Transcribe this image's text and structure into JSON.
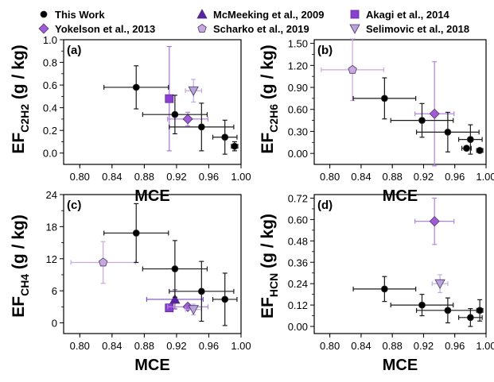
{
  "legend": {
    "entries": [
      {
        "label": "This Work",
        "marker": "circle",
        "color": "#000000"
      },
      {
        "label": "McMeeking et al., 2009",
        "marker": "triangle-up",
        "color": "#5b1fa8"
      },
      {
        "label": "Akagi et al., 2014",
        "marker": "square",
        "color": "#8a3fd1"
      },
      {
        "label": "Yokelson et al., 2013",
        "marker": "diamond",
        "color": "#a25ad6"
      },
      {
        "label": "Scharko et al., 2019",
        "marker": "pentagon",
        "color": "#c8a8df"
      },
      {
        "label": "Selimovic et al., 2018",
        "marker": "triangle-down",
        "color": "#b9a3d8"
      }
    ]
  },
  "chart_data": [
    {
      "panel_label": "(a)",
      "type": "scatter",
      "xlabel": "MCE",
      "ylabel_main": "EF",
      "ylabel_sub": "C2H2",
      "ylabel_units": " (g / kg)",
      "xlim": [
        0.78,
        1.0
      ],
      "ylim": [
        -0.1,
        1.0
      ],
      "xticks": [
        "0.80",
        "0.84",
        "0.88",
        "0.92",
        "0.96",
        "1.00"
      ],
      "yticks": [
        "0.0",
        "0.2",
        "0.4",
        "0.6",
        "0.8",
        "1.0"
      ],
      "ytick_values": [
        0.0,
        0.2,
        0.4,
        0.6,
        0.8,
        1.0
      ],
      "series": [
        {
          "name": "This Work",
          "points": [
            {
              "x": 0.87,
              "y": 0.58,
              "xerr": 0.04,
              "yerr": 0.19
            },
            {
              "x": 0.918,
              "y": 0.34,
              "xerr": 0.04,
              "yerr": 0.17
            },
            {
              "x": 0.951,
              "y": 0.23,
              "xerr": 0.04,
              "yerr": 0.21
            },
            {
              "x": 0.98,
              "y": 0.14,
              "xerr": 0.015,
              "yerr": 0.15
            },
            {
              "x": 0.992,
              "y": 0.06,
              "xerr": 0.004,
              "yerr": 0.04
            }
          ]
        },
        {
          "name": "Akagi et al., 2014",
          "points": [
            {
              "x": 0.911,
              "y": 0.48,
              "xerr": 0,
              "yerr": 0.46
            }
          ]
        },
        {
          "name": "Yokelson et al., 2013",
          "points": [
            {
              "x": 0.934,
              "y": 0.3,
              "xerr": 0.025,
              "yerr": 0.06
            }
          ]
        },
        {
          "name": "Selimovic et al., 2018",
          "points": [
            {
              "x": 0.941,
              "y": 0.55,
              "xerr": 0.01,
              "yerr": 0.1
            }
          ]
        }
      ]
    },
    {
      "panel_label": "(b)",
      "type": "scatter",
      "xlabel": "MCE",
      "ylabel_main": "EF",
      "ylabel_sub": "C2H6",
      "ylabel_units": " (g / kg)",
      "xlim": [
        0.78,
        1.0
      ],
      "ylim": [
        -0.15,
        1.55
      ],
      "xticks": [
        "0.80",
        "0.84",
        "0.88",
        "0.92",
        "0.96",
        "1.00"
      ],
      "yticks": [
        "0.00",
        "0.30",
        "0.60",
        "0.90",
        "1.20",
        "1.50"
      ],
      "ytick_values": [
        0.0,
        0.3,
        0.6,
        0.9,
        1.2,
        1.5
      ],
      "series": [
        {
          "name": "This Work",
          "points": [
            {
              "x": 0.87,
              "y": 0.75,
              "xerr": 0.04,
              "yerr": 0.28
            },
            {
              "x": 0.918,
              "y": 0.45,
              "xerr": 0.04,
              "yerr": 0.23
            },
            {
              "x": 0.951,
              "y": 0.29,
              "xerr": 0.04,
              "yerr": 0.27
            },
            {
              "x": 0.98,
              "y": 0.19,
              "xerr": 0.015,
              "yerr": 0.2
            },
            {
              "x": 0.975,
              "y": 0.07,
              "xerr": 0.006,
              "yerr": 0.03
            },
            {
              "x": 0.992,
              "y": 0.04,
              "xerr": 0.004,
              "yerr": 0.02
            }
          ]
        },
        {
          "name": "Yokelson et al., 2013",
          "points": [
            {
              "x": 0.934,
              "y": 0.54,
              "xerr": 0.025,
              "yerr": 0.71
            }
          ]
        },
        {
          "name": "Scharko et al., 2019",
          "points": [
            {
              "x": 0.829,
              "y": 1.14,
              "xerr": 0.04,
              "yerr": 0.42
            }
          ]
        }
      ]
    },
    {
      "panel_label": "(c)",
      "type": "scatter",
      "xlabel": "MCE",
      "ylabel_main": "EF",
      "ylabel_sub": "CH4",
      "ylabel_units": " (g / kg)",
      "xlim": [
        0.78,
        1.0
      ],
      "ylim": [
        -2,
        24
      ],
      "xticks": [
        "0.80",
        "0.84",
        "0.88",
        "0.92",
        "0.96",
        "1.00"
      ],
      "yticks": [
        "0",
        "6",
        "12",
        "18",
        "24"
      ],
      "ytick_values": [
        0,
        6,
        12,
        18,
        24
      ],
      "series": [
        {
          "name": "This Work",
          "points": [
            {
              "x": 0.87,
              "y": 16.8,
              "xerr": 0.04,
              "yerr": 5.5
            },
            {
              "x": 0.918,
              "y": 10.1,
              "xerr": 0.04,
              "yerr": 5.3
            },
            {
              "x": 0.951,
              "y": 5.9,
              "xerr": 0.04,
              "yerr": 5.6
            },
            {
              "x": 0.98,
              "y": 4.4,
              "xerr": 0.015,
              "yerr": 4.9
            }
          ]
        },
        {
          "name": "McMeeking et al., 2009",
          "points": [
            {
              "x": 0.918,
              "y": 4.4,
              "xerr": 0.035,
              "yerr": 1.8
            }
          ]
        },
        {
          "name": "Akagi et al., 2014",
          "points": [
            {
              "x": 0.911,
              "y": 2.8,
              "xerr": 0,
              "yerr": 0
            }
          ]
        },
        {
          "name": "Yokelson et al., 2013",
          "points": [
            {
              "x": 0.934,
              "y": 3.0,
              "xerr": 0.025,
              "yerr": 0.5
            }
          ]
        },
        {
          "name": "Scharko et al., 2019",
          "points": [
            {
              "x": 0.829,
              "y": 11.3,
              "xerr": 0.04,
              "yerr": 3.9
            }
          ]
        },
        {
          "name": "Selimovic et al., 2018",
          "points": [
            {
              "x": 0.941,
              "y": 2.5,
              "xerr": 0.01,
              "yerr": 1.0
            }
          ]
        }
      ]
    },
    {
      "panel_label": "(d)",
      "type": "scatter",
      "xlabel": "MCE",
      "ylabel_main": "EF",
      "ylabel_sub": "HCN",
      "ylabel_units": " (g / kg)",
      "xlim": [
        0.78,
        1.0
      ],
      "ylim": [
        -0.04,
        0.74
      ],
      "xticks": [
        "0.80",
        "0.84",
        "0.88",
        "0.92",
        "0.96",
        "1.00"
      ],
      "yticks": [
        "0.00",
        "0.12",
        "0.24",
        "0.36",
        "0.48",
        "0.60",
        "0.72"
      ],
      "ytick_values": [
        0.0,
        0.12,
        0.24,
        0.36,
        0.48,
        0.6,
        0.72
      ],
      "series": [
        {
          "name": "This Work",
          "points": [
            {
              "x": 0.87,
              "y": 0.21,
              "xerr": 0.04,
              "yerr": 0.07
            },
            {
              "x": 0.918,
              "y": 0.12,
              "xerr": 0.04,
              "yerr": 0.06
            },
            {
              "x": 0.951,
              "y": 0.09,
              "xerr": 0.04,
              "yerr": 0.07
            },
            {
              "x": 0.98,
              "y": 0.05,
              "xerr": 0.015,
              "yerr": 0.05
            },
            {
              "x": 0.992,
              "y": 0.09,
              "xerr": 0.004,
              "yerr": 0.06
            }
          ]
        },
        {
          "name": "Yokelson et al., 2013",
          "points": [
            {
              "x": 0.934,
              "y": 0.59,
              "xerr": 0.025,
              "yerr": 0.13
            }
          ]
        },
        {
          "name": "Selimovic et al., 2018",
          "points": [
            {
              "x": 0.941,
              "y": 0.24,
              "xerr": 0.01,
              "yerr": 0.05
            }
          ]
        }
      ]
    }
  ]
}
